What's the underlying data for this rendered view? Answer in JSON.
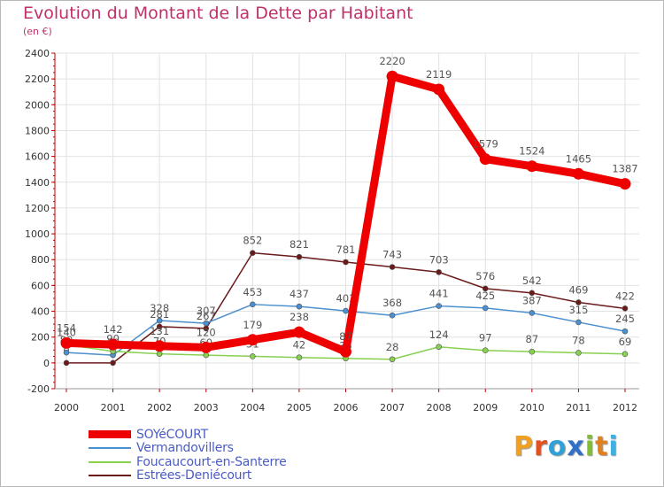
{
  "title": "Evolution du Montant de la Dette par Habitant",
  "subtitle": "(en €)",
  "brand": {
    "letters": [
      "P",
      "r",
      "o",
      "x",
      "i",
      "t",
      "i"
    ],
    "colors": [
      "#f0a020",
      "#e05020",
      "#30a0d8",
      "#3070c8",
      "#80c030",
      "#e08020",
      "#40b0e0"
    ]
  },
  "chart_data": {
    "type": "line",
    "x": [
      "2000",
      "2001",
      "2002",
      "2003",
      "2004",
      "2005",
      "2006",
      "2007",
      "2008",
      "2009",
      "2010",
      "2011",
      "2012"
    ],
    "ylim": [
      -200,
      2400
    ],
    "yticks": [
      -200,
      0,
      200,
      400,
      600,
      800,
      1000,
      1200,
      1400,
      1600,
      1800,
      2000,
      2200,
      2400
    ],
    "grid": true,
    "legend": "bottom-left",
    "series": [
      {
        "name": "Estrées-Deniécourt",
        "color": "#6b1a1a",
        "values": [
          0,
          0,
          281,
          267,
          852,
          821,
          781,
          743,
          703,
          576,
          542,
          469,
          422
        ],
        "labels": [
          "0",
          "0",
          "281",
          "267",
          "852",
          "821",
          "781",
          "743",
          "703",
          "576",
          "542",
          "469",
          "422"
        ]
      },
      {
        "name": "Vermandovillers",
        "color": "#4a90d0",
        "values": [
          80,
          60,
          328,
          307,
          453,
          437,
          403,
          368,
          441,
          425,
          387,
          315,
          245
        ],
        "labels": [
          "80",
          "60",
          "328",
          "307",
          "453",
          "437",
          "403",
          "368",
          "441",
          "425",
          "387",
          "315",
          "245"
        ]
      },
      {
        "name": "Foucaucourt-en-Santerre",
        "color": "#88d050",
        "values": [
          140,
          90,
          70,
          60,
          51,
          42,
          35,
          28,
          124,
          97,
          87,
          78,
          69
        ],
        "labels": [
          "140",
          "90",
          "70",
          "60",
          "51",
          "42",
          "35",
          "28",
          "124",
          "97",
          "87",
          "78",
          "69"
        ]
      },
      {
        "name": "SOYéCOURT",
        "color": "#ee0000",
        "values": [
          154,
          142,
          131,
          120,
          179,
          238,
          87,
          2220,
          2119,
          1579,
          1524,
          1465,
          1387
        ],
        "labels": [
          "154",
          "142",
          "131",
          "120",
          "179",
          "238",
          "87",
          "2220",
          "2119",
          "1579",
          "1524",
          "1465",
          "1387"
        ]
      }
    ],
    "legend_order": [
      "SOYéCOURT",
      "Vermandovillers",
      "Foucaucourt-en-Santerre",
      "Estrées-Deniécourt"
    ]
  }
}
